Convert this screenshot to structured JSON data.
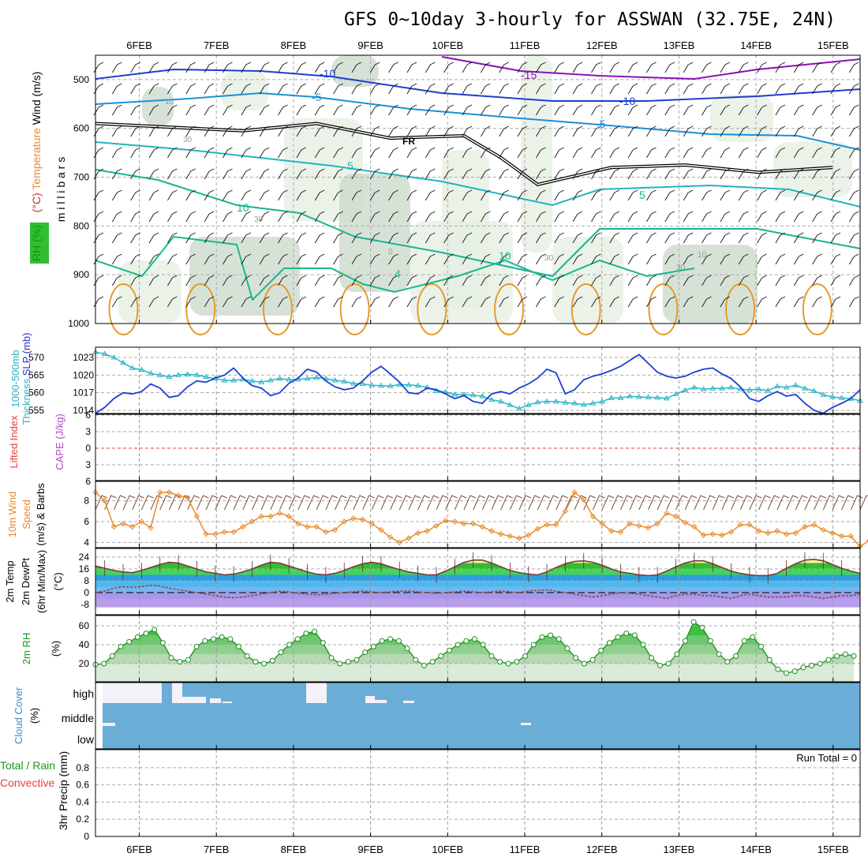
{
  "title": "GFS 0~10day 3-hourly for ASSWAN (32.75E, 24N)",
  "run_total": "Run Total = 0",
  "chart_data": [
    {
      "panel": "upper-air",
      "type": "contour",
      "x_dates": [
        "6FEB",
        "7FEB",
        "8FEB",
        "9FEB",
        "10FEB",
        "11FEB",
        "12FEB",
        "13FEB",
        "14FEB",
        "15FEB"
      ],
      "y_ticks": [
        500,
        600,
        700,
        800,
        900,
        1000
      ],
      "ylabel": "m i l l i b a r s",
      "legend": [
        {
          "text": "Wind (m/s)",
          "color": "#000000"
        },
        {
          "text": "Temperature",
          "color": "#e88a2c"
        },
        {
          "text": "(°C)",
          "color": "#c8302c"
        },
        {
          "text": "RH (%)",
          "color": "#1a8f1a"
        }
      ],
      "isotherm_labels": [
        "-15",
        "-10",
        "-5",
        "-5",
        "-10",
        "5",
        "5",
        "10",
        "10",
        "4",
        "FR"
      ],
      "rh_labels": [
        "30",
        "0",
        "10",
        "30",
        "10",
        "30",
        "30"
      ],
      "freezing_level_mb": [
        [
          0,
          590
        ],
        [
          16,
          605
        ],
        [
          24,
          590
        ],
        [
          32,
          620
        ],
        [
          40,
          615
        ],
        [
          44,
          660
        ],
        [
          48,
          715
        ],
        [
          56,
          680
        ],
        [
          64,
          675
        ],
        [
          72,
          690
        ],
        [
          80,
          680
        ]
      ]
    },
    {
      "panel": "slp-thickness",
      "type": "line",
      "y_ticks_right": [
        "1023",
        "1020",
        "1017",
        "1014"
      ],
      "y_ticks_left": [
        "570",
        "565",
        "560",
        "555"
      ],
      "legend": [
        {
          "text": "1000-500mb",
          "color": "#29b5c6"
        },
        {
          "text": "Thickness",
          "color": "#29b5c6"
        },
        {
          "text": "SLP (mb)",
          "color": "#2233cc"
        }
      ],
      "series": [
        {
          "name": "SLP (mb)",
          "color": "#1a3fd6",
          "values": [
            1013.5,
            1014.5,
            1016,
            1017,
            1016.8,
            1017.2,
            1018.5,
            1017.8,
            1016.2,
            1016.5,
            1018,
            1019,
            1018.8,
            1019.5,
            1020,
            1021.2,
            1019.5,
            1018.2,
            1017.8,
            1016.5,
            1017,
            1018.6,
            1019.5,
            1021,
            1020.5,
            1019,
            1018,
            1017.5,
            1017.8,
            1019,
            1020.5,
            1021.5,
            1020.2,
            1018.8,
            1017,
            1016.8,
            1017.8,
            1017.5,
            1016.8,
            1016,
            1016.5,
            1015.5,
            1015.2,
            1016.8,
            1017.2,
            1016.8,
            1017.8,
            1018.5,
            1019.5,
            1021,
            1020.4,
            1016.8,
            1017.5,
            1019.2,
            1019.8,
            1020.2,
            1020.8,
            1021.5,
            1022.5,
            1023.5,
            1022,
            1020.5,
            1019.8,
            1019.5,
            1019.8,
            1020.5,
            1021,
            1021.2,
            1020.2,
            1019.4,
            1018,
            1016,
            1015.5,
            1016.5,
            1017.2,
            1016.4,
            1016.7,
            1015.2,
            1014,
            1013.5,
            1014.5,
            1015.2,
            1016,
            1017.5
          ]
        },
        {
          "name": "Thickness",
          "color": "#29b5c6",
          "values": [
            571.5,
            571,
            570,
            568.5,
            567,
            566.5,
            565.5,
            565,
            564.5,
            565,
            565.2,
            565,
            564.5,
            564,
            563.5,
            563.5,
            563.8,
            563.3,
            563,
            563.5,
            564,
            563.7,
            563.8,
            564,
            564.3,
            564,
            563.5,
            563.2,
            562.6,
            562.5,
            562.1,
            562,
            561.9,
            562.3,
            562.2,
            562,
            561.5,
            560.5,
            560.2,
            559.5,
            559.5,
            559.3,
            559,
            558,
            557.5,
            556.5,
            555.5,
            556.5,
            557.3,
            557.5,
            557.5,
            557.2,
            557,
            556.6,
            557,
            557.5,
            558.5,
            558.5,
            559,
            558.8,
            558.7,
            558.6,
            558.4,
            559.6,
            560.7,
            561.5,
            561,
            561.2,
            561.2,
            561.5,
            561,
            560.8,
            561,
            560.6,
            561.8,
            561.5,
            562.1,
            561.2,
            560.5,
            559.4,
            558.8,
            558.5,
            558.3,
            557.7
          ]
        }
      ]
    },
    {
      "panel": "cape-li",
      "type": "line",
      "y_ticks": [
        "-6",
        "-3",
        "0",
        "3",
        "6"
      ],
      "legend": [
        {
          "text": "Lifted Index",
          "color": "#e83c3c"
        },
        {
          "text": "CAPE (J/kg)",
          "color": "#b04cc4"
        }
      ],
      "series": []
    },
    {
      "panel": "wind10m",
      "type": "line",
      "y_ticks": [
        "8",
        "6",
        "4"
      ],
      "legend": [
        {
          "text": "10m Wind",
          "color": "#e88a2c"
        },
        {
          "text": "Speed",
          "color": "#e88a2c"
        },
        {
          "text": "(m/s)",
          "color": "#000000"
        },
        {
          "text": "& Barbs",
          "color": "#000000"
        }
      ],
      "series": [
        {
          "name": "10m Wind Speed",
          "color": "#e88a2c",
          "values": [
            8.8,
            8,
            5.5,
            5.8,
            5.5,
            6,
            5.4,
            8.8,
            8.8,
            8.5,
            8.3,
            6.5,
            4.8,
            4.8,
            5,
            5,
            5.5,
            6,
            6.5,
            6.5,
            6.8,
            6.5,
            5.8,
            5.5,
            5.5,
            5,
            5.2,
            6,
            6.3,
            6.2,
            5.8,
            5.2,
            4.5,
            4,
            4.4,
            4.9,
            5.1,
            5.6,
            6.1,
            6,
            5.8,
            5.8,
            5.5,
            5.1,
            4.8,
            4.6,
            4.4,
            4.7,
            5.3,
            5.7,
            5.7,
            7,
            8.8,
            8.1,
            6.5,
            5.8,
            5.1,
            5,
            5.8,
            5.6,
            5.4,
            5.8,
            6.8,
            6.5,
            5.9,
            5.5,
            4.7,
            4.8,
            4.7,
            5,
            5.7,
            5.7,
            5.1,
            4.9,
            5.1,
            4.8,
            4.9,
            5.5,
            5.7,
            5.2,
            4.9,
            4.6,
            4.6,
            3.6,
            4.2,
            6.2
          ]
        }
      ]
    },
    {
      "panel": "temp2m",
      "type": "area",
      "y_ticks": [
        "24",
        "16",
        "8",
        "0",
        "-8"
      ],
      "legend": [
        {
          "text": "2m Temp",
          "color": "#000000"
        },
        {
          "text": "2m DewPt",
          "color": "#000000"
        },
        {
          "text": "(6hr Min/Max)",
          "color": "#000000"
        },
        {
          "text": "(°C)",
          "color": "#000000"
        }
      ],
      "series": [
        {
          "name": "2m Temp",
          "color": "#7a3b3b",
          "values": [
            18,
            16.5,
            15,
            14,
            13.5,
            15,
            17,
            19,
            20.5,
            20,
            18,
            16,
            14,
            13,
            12,
            12.5,
            14,
            16,
            18.5,
            20.5,
            20,
            18,
            16,
            14,
            12.5,
            12,
            13,
            15,
            17.5,
            19.5,
            20.5,
            19.5,
            17.5,
            15.5,
            14,
            13,
            12,
            12,
            14.5,
            17.5,
            20.5,
            22,
            22,
            20,
            17.5,
            15,
            13.5,
            12.5,
            12,
            14,
            17,
            19.5,
            21,
            21.5,
            20.5,
            18.5,
            16,
            14,
            13,
            12,
            11.5,
            12,
            14.5,
            17.5,
            20,
            21.5,
            21.5,
            19.5,
            17,
            14.5,
            13,
            12,
            11.5,
            11.5,
            13,
            16.5,
            19.5,
            22,
            22.5,
            21.5,
            19,
            16.5,
            14.5,
            13
          ]
        },
        {
          "name": "2m DewPt",
          "color": "#8a4a4a",
          "values": [
            0,
            1,
            3,
            4,
            3.5,
            4,
            5,
            4.5,
            3,
            2,
            1,
            0,
            -1,
            -2,
            -3,
            -3.5,
            -3,
            -2,
            -1,
            0,
            1,
            0.5,
            -0.5,
            -1,
            -1.5,
            -1,
            -0.5,
            0,
            0.5,
            1,
            0.5,
            0,
            0.5,
            1,
            1,
            0.5,
            0,
            -0.5,
            0,
            0.5,
            1,
            0.5,
            0,
            0.5,
            1,
            0.5,
            0,
            1,
            1.5,
            2,
            1,
            0,
            -1,
            -2,
            -3,
            -2,
            -1,
            0,
            -0.5,
            -1,
            -2,
            -3,
            -4,
            -2,
            -1,
            -1,
            -2,
            -2,
            -3,
            -4,
            -2,
            -1,
            -2,
            -3,
            -3,
            -3,
            -2,
            -2,
            -3,
            -4,
            -3,
            -2,
            -2,
            -1
          ]
        }
      ]
    },
    {
      "panel": "rh2m",
      "type": "area",
      "y_ticks": [
        "60",
        "40",
        "20"
      ],
      "legend": [
        {
          "text": "2m RH",
          "color": "#1a9a1a"
        },
        {
          "text": "(%)",
          "color": "#000000"
        }
      ],
      "series": [
        {
          "name": "2m RH",
          "color": "#1a8f1a",
          "values": [
            19,
            20,
            28,
            38,
            43,
            48,
            52,
            56,
            42,
            26,
            22,
            24,
            38,
            44,
            46,
            48,
            46,
            38,
            28,
            22,
            20,
            23,
            32,
            40,
            46,
            52,
            54,
            42,
            26,
            20,
            22,
            24,
            32,
            38,
            44,
            46,
            44,
            36,
            24,
            18,
            22,
            28,
            34,
            40,
            44,
            46,
            40,
            28,
            22,
            20,
            22,
            28,
            40,
            48,
            50,
            46,
            36,
            26,
            20,
            24,
            34,
            42,
            48,
            52,
            50,
            40,
            26,
            18,
            20,
            30,
            44,
            64,
            58,
            44,
            30,
            22,
            28,
            44,
            48,
            38,
            24,
            14,
            10,
            12,
            16,
            18,
            20,
            24,
            28,
            30,
            28
          ]
        }
      ]
    },
    {
      "panel": "cloud",
      "type": "bar",
      "y_ticks": [
        "high",
        "middle",
        "low"
      ],
      "legend": [
        {
          "text": "Cloud Cover",
          "color": "#3a8fc8"
        },
        {
          "text": "(%)",
          "color": "#000000"
        }
      ]
    },
    {
      "panel": "precip",
      "type": "bar",
      "y_ticks": [
        "0.8",
        "0.6",
        "0.4",
        "0.2",
        "0"
      ],
      "legend": [
        {
          "text": "Total / Rain",
          "color": "#1a9a1a"
        },
        {
          "text": "Convective",
          "color": "#e83c3c"
        },
        {
          "text": "3hr Precip (mm)",
          "color": "#000000"
        }
      ],
      "series": []
    }
  ]
}
